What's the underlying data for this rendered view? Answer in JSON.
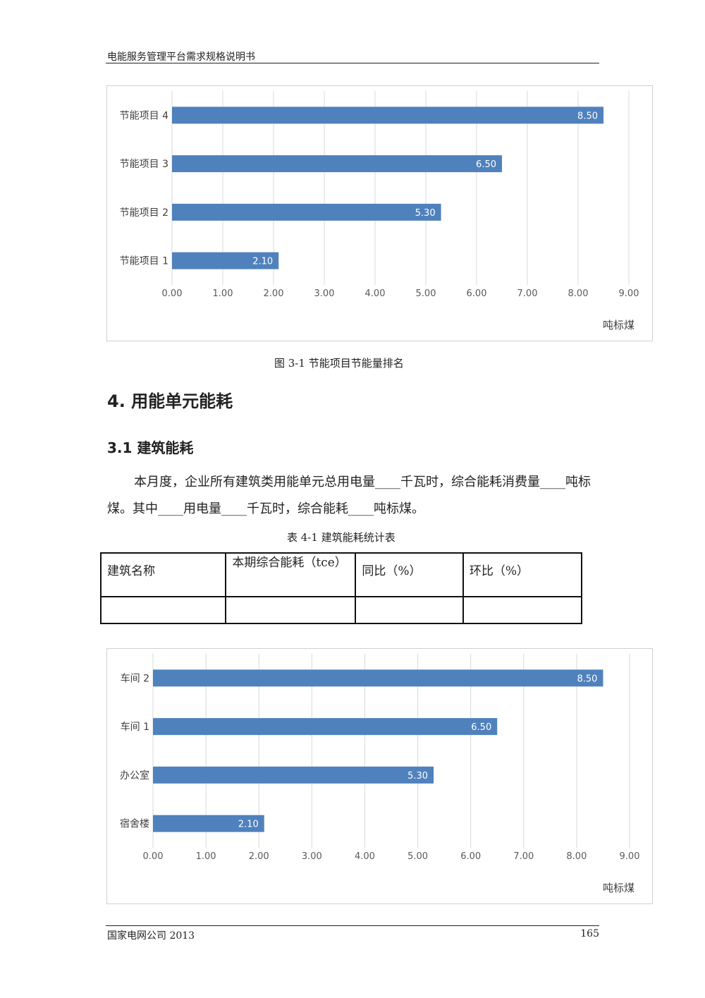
{
  "header": {
    "title": "电能服务管理平台需求规格说明书"
  },
  "chart1": {
    "caption": "图 3-1    节能项目节能量排名"
  },
  "section_heading": "4.  用能单元能耗",
  "subsection_heading": "3.1  建筑能耗",
  "paragraph": "本月度，企业所有建筑类用能单元总用电量____千瓦时，综合能耗消费量____吨标煤。其中____用电量____千瓦时，综合能耗____吨标煤。",
  "table": {
    "caption": "表 4-1    建筑能耗统计表",
    "headers": [
      "建筑名称",
      "本期综合能耗（tce）",
      "同比（%）",
      "环比（%）"
    ],
    "rows": [
      [
        "",
        "",
        "",
        ""
      ]
    ]
  },
  "footer": {
    "left": "国家电网公司  2013",
    "page": "165"
  },
  "chart_data": [
    {
      "type": "bar",
      "orientation": "horizontal",
      "categories": [
        "节能项目 4",
        "节能项目 3",
        "节能项目 2",
        "节能项目 1"
      ],
      "values": [
        8.5,
        6.5,
        5.3,
        2.1
      ],
      "data_labels": [
        "8.50",
        "6.50",
        "5.30",
        "2.10"
      ],
      "xlim": [
        0,
        9
      ],
      "xticks": [
        "0.00",
        "1.00",
        "2.00",
        "3.00",
        "4.00",
        "5.00",
        "6.00",
        "7.00",
        "8.00",
        "9.00"
      ],
      "unit_label": "吨标煤",
      "bar_color": "#4f81bd",
      "grid": true
    },
    {
      "type": "bar",
      "orientation": "horizontal",
      "categories": [
        "车间 2",
        "车间 1",
        "办公室",
        "宿舍楼"
      ],
      "values": [
        8.5,
        6.5,
        5.3,
        2.1
      ],
      "data_labels": [
        "8.50",
        "6.50",
        "5.30",
        "2.10"
      ],
      "xlim": [
        0,
        9
      ],
      "xticks": [
        "0.00",
        "1.00",
        "2.00",
        "3.00",
        "4.00",
        "5.00",
        "6.00",
        "7.00",
        "8.00",
        "9.00"
      ],
      "unit_label": "吨标煤",
      "bar_color": "#4f81bd",
      "grid": true
    }
  ]
}
